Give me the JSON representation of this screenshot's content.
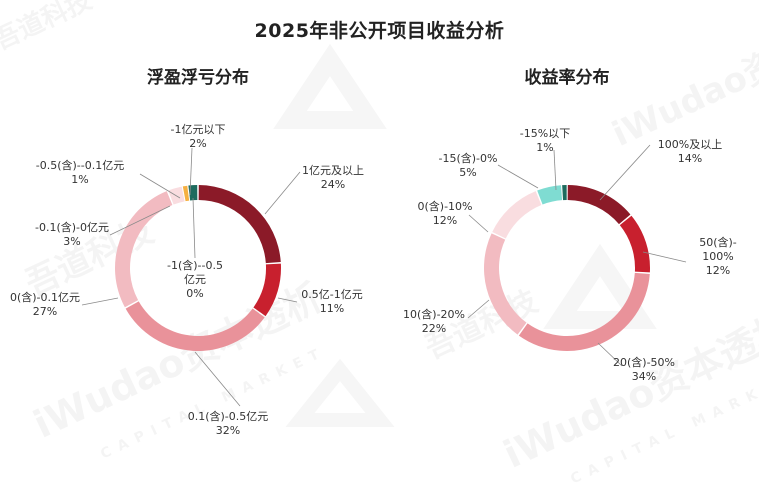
{
  "title": "2025年非公开项目收益分析",
  "watermark": {
    "brand_cn": "吾道科技",
    "brand_en": "iWudao资本透析",
    "brand_sub": "CAPITAL MARKET"
  },
  "chart_data": [
    {
      "type": "pie",
      "donut": true,
      "title": "浮盈浮亏分布",
      "unit": "%",
      "slices": [
        {
          "name": "1亿元及以上",
          "value": 24,
          "color": "#8B1A28"
        },
        {
          "name": "0.5亿-1亿元",
          "value": 11,
          "color": "#C8202E"
        },
        {
          "name": "0.1(含)-0.5亿元",
          "value": 32,
          "color": "#E9929A"
        },
        {
          "name": "0(含)-0.1亿元",
          "value": 27,
          "color": "#F2BBC1"
        },
        {
          "name": "-0.1(含)-0亿元",
          "value": 3,
          "color": "#F9DDE0"
        },
        {
          "name": "-0.5(含)--0.1亿元",
          "value": 1,
          "color": "#F5B041"
        },
        {
          "name": "-1亿元以下",
          "value": 2,
          "color": "#1E6B5E"
        },
        {
          "name": "-1(含)--0.5亿元",
          "value": 0,
          "color": "#2F8F7E"
        }
      ],
      "labels": [
        {
          "l1": "1亿元及以上",
          "l2": "24%"
        },
        {
          "l1": "0.5亿-1亿元",
          "l2": "11%"
        },
        {
          "l1": "0.1(含)-0.5亿元",
          "l2": "32%"
        },
        {
          "l1": "0(含)-0.1亿元",
          "l2": "27%"
        },
        {
          "l1": "-0.1(含)-0亿元",
          "l2": "3%"
        },
        {
          "l1": "-0.5(含)--0.1亿元",
          "l2": "1%"
        },
        {
          "l1": "-1亿元以下",
          "l2": "2%"
        },
        {
          "l1": "-1(含)--0.5",
          "l2": "亿元",
          "l3": "0%"
        }
      ]
    },
    {
      "type": "pie",
      "donut": true,
      "title": "收益率分布",
      "unit": "%",
      "slices": [
        {
          "name": "100%及以上",
          "value": 14,
          "color": "#8B1A28"
        },
        {
          "name": "50(含)-100%",
          "value": 12,
          "color": "#C8202E"
        },
        {
          "name": "20(含)-50%",
          "value": 34,
          "color": "#E9929A"
        },
        {
          "name": "10(含)-20%",
          "value": 22,
          "color": "#F2BBC1"
        },
        {
          "name": "0(含)-10%",
          "value": 12,
          "color": "#F9DDE0"
        },
        {
          "name": "-15(含)-0%",
          "value": 5,
          "color": "#7FDCD2"
        },
        {
          "name": "-15%以下",
          "value": 1,
          "color": "#1E6B5E"
        }
      ],
      "labels": [
        {
          "l1": "100%及以上",
          "l2": "14%"
        },
        {
          "l1": "50(含)-",
          "l2": "100%",
          "l3": "12%"
        },
        {
          "l1": "20(含)-50%",
          "l2": "34%"
        },
        {
          "l1": "10(含)-20%",
          "l2": "22%"
        },
        {
          "l1": "0(含)-10%",
          "l2": "12%"
        },
        {
          "l1": "-15(含)-0%",
          "l2": "5%"
        },
        {
          "l1": "-15%以下",
          "l2": "1%"
        }
      ]
    }
  ]
}
